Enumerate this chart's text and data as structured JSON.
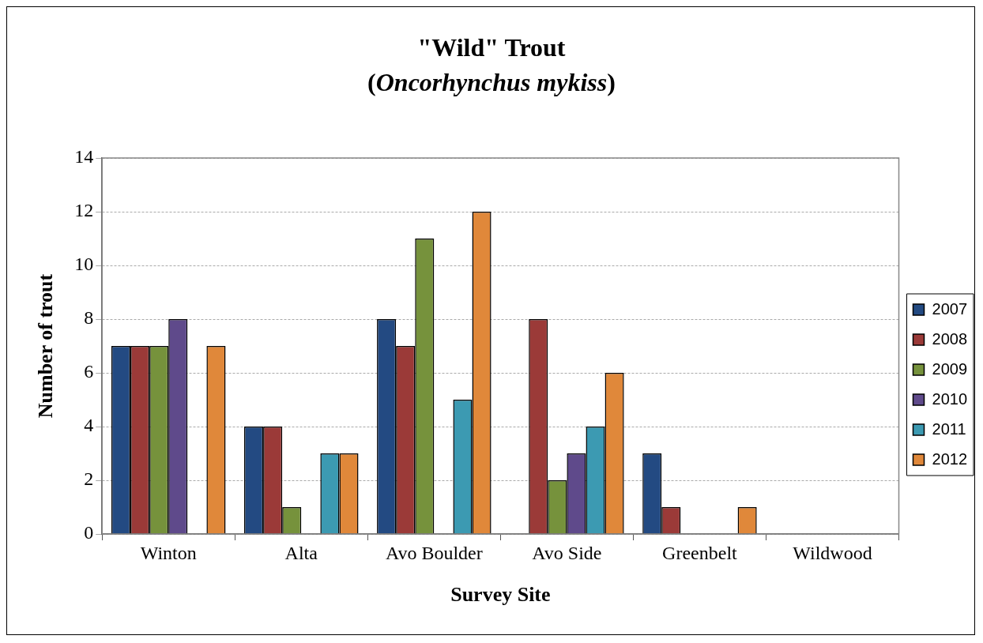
{
  "chart_data": {
    "type": "bar",
    "title": "\"Wild\" Trout",
    "subtitle": "(Oncorhynchus mykiss)",
    "xlabel": "Survey Site",
    "ylabel": "Number of trout",
    "categories": [
      "Winton",
      "Alta",
      "Avo Boulder",
      "Avo Side",
      "Greenbelt",
      "Wildwood"
    ],
    "series": [
      {
        "name": "2007",
        "color": "#234a82",
        "values": [
          7,
          4,
          8,
          0,
          3,
          0
        ]
      },
      {
        "name": "2008",
        "color": "#9b3a38",
        "values": [
          7,
          4,
          7,
          8,
          1,
          0
        ]
      },
      {
        "name": "2009",
        "color": "#76923c",
        "values": [
          7,
          1,
          11,
          2,
          0,
          0
        ]
      },
      {
        "name": "2010",
        "color": "#5f4a8b",
        "values": [
          8,
          0,
          0,
          3,
          0,
          0
        ]
      },
      {
        "name": "2011",
        "color": "#3c9ab2",
        "values": [
          0,
          3,
          5,
          4,
          0,
          0
        ]
      },
      {
        "name": "2012",
        "color": "#e0883a",
        "values": [
          7,
          3,
          12,
          6,
          1,
          0
        ]
      }
    ],
    "ylim": [
      0,
      14
    ],
    "yticks": [
      0,
      2,
      4,
      6,
      8,
      10,
      12,
      14
    ],
    "grid": "y",
    "legend": "right"
  }
}
